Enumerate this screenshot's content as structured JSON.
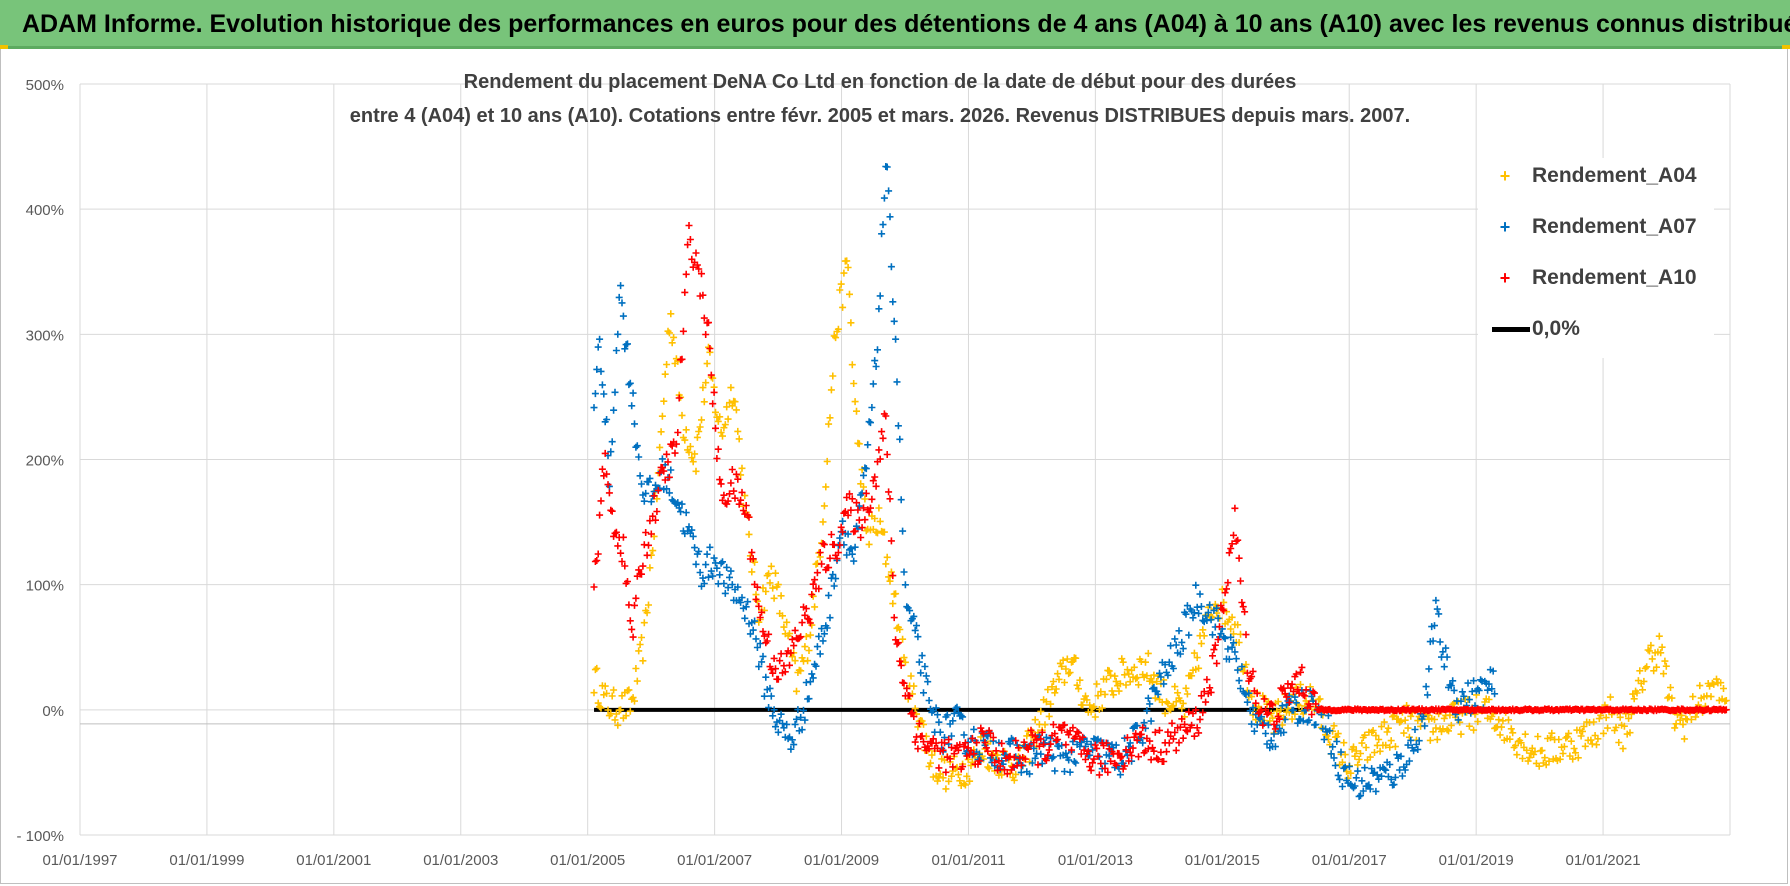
{
  "banner": {
    "title": "ADAM Informe. Evolution historique des performances en euros pour des détentions de 4 ans (A04) à 10 ans (A10) avec les revenus connus distribués"
  },
  "colors": {
    "banner": "#78c47a",
    "a04": "#ffc000",
    "a07": "#0070c0",
    "a10": "#ff0000",
    "zero": "#000000",
    "grid": "#d9d9d9",
    "text": "#404040"
  },
  "chart_data": {
    "type": "scatter",
    "title_line1": "Rendement du placement DeNA Co Ltd en fonction de la date de début pour des durées",
    "title_line2": "entre 4 (A04) et 10 ans (A10). Cotations entre févr. 2005 et mars. 2026. Revenus DISTRIBUES depuis mars. 2007.",
    "x_axis": {
      "type": "date",
      "min_year": 1997.0,
      "max_year": 2023.0,
      "tick_labels": [
        "01/01/1997",
        "01/01/1999",
        "01/01/2001",
        "01/01/2003",
        "01/01/2005",
        "01/01/2007",
        "01/01/2009",
        "01/01/2011",
        "01/01/2013",
        "01/01/2015",
        "01/01/2017",
        "01/01/2019",
        "01/01/2021"
      ]
    },
    "y_axis": {
      "min": -100,
      "max": 500,
      "tick_values": [
        500,
        400,
        300,
        200,
        100,
        0,
        -100
      ],
      "tick_labels": [
        "500%",
        "400%",
        "300%",
        "200%",
        "100%",
        "0%",
        "- 100%"
      ],
      "grid": true
    },
    "legend": [
      "Rendement_A04",
      "Rendement_A07",
      "Rendement_A10",
      "0,0%"
    ],
    "legend_position": "right",
    "series": [
      {
        "name": "Rendement_A04",
        "color": "#ffc000",
        "x_years": [
          2005.1,
          2005.3,
          2005.5,
          2005.7,
          2005.9,
          2006.1,
          2006.3,
          2006.5,
          2006.7,
          2006.9,
          2007.1,
          2007.3,
          2007.5,
          2007.7,
          2007.9,
          2008.1,
          2008.3,
          2008.5,
          2008.7,
          2008.9,
          2009.1,
          2009.2,
          2009.4,
          2009.6,
          2009.8,
          2010.0,
          2010.2,
          2010.4,
          2010.6,
          2010.8,
          2011.0,
          2011.2,
          2011.5,
          2011.8,
          2012.0,
          2012.3,
          2012.6,
          2012.9,
          2013.2,
          2013.5,
          2013.8,
          2014.1,
          2014.4,
          2014.7,
          2014.9,
          2015.2,
          2015.5,
          2015.8,
          2016.1,
          2016.4,
          2016.7,
          2017.0,
          2017.3,
          2017.6,
          2017.9,
          2018.2,
          2018.5,
          2018.8,
          2019.1,
          2019.4,
          2019.7,
          2020.0,
          2020.3,
          2020.6,
          2020.9,
          2021.1,
          2021.3,
          2021.5,
          2021.7,
          2021.9,
          2022.1,
          2022.3,
          2022.5,
          2022.7,
          2022.95
        ],
        "y_pct": [
          25,
          5,
          0,
          5,
          60,
          180,
          320,
          230,
          200,
          280,
          220,
          260,
          150,
          80,
          110,
          70,
          20,
          60,
          150,
          300,
          360,
          250,
          140,
          150,
          100,
          30,
          0,
          -40,
          -50,
          -50,
          -45,
          -30,
          -40,
          -45,
          -25,
          10,
          40,
          0,
          20,
          30,
          35,
          10,
          0,
          60,
          90,
          70,
          5,
          -10,
          5,
          10,
          -20,
          -45,
          -30,
          -20,
          -10,
          -15,
          -10,
          -5,
          0,
          -10,
          -25,
          -35,
          -30,
          -25,
          -15,
          0,
          -20,
          5,
          40,
          50,
          -5,
          -10,
          5,
          15,
          10
        ]
      },
      {
        "name": "Rendement_A07",
        "color": "#0070c0",
        "x_years": [
          2005.1,
          2005.2,
          2005.35,
          2005.5,
          2005.7,
          2005.85,
          2006.0,
          2006.2,
          2006.4,
          2006.6,
          2006.8,
          2007.0,
          2007.2,
          2007.4,
          2007.6,
          2007.8,
          2008.0,
          2008.2,
          2008.4,
          2008.6,
          2008.8,
          2009.0,
          2009.2,
          2009.4,
          2009.55,
          2009.7,
          2009.85,
          2010.0,
          2010.2,
          2010.4,
          2010.6,
          2010.8,
          2011.0,
          2011.3,
          2011.6,
          2011.9,
          2012.2,
          2012.5,
          2012.8,
          2013.1,
          2013.4,
          2013.7,
          2014.0,
          2014.3,
          2014.6,
          2014.9,
          2015.2,
          2015.5,
          2015.8,
          2016.1,
          2016.4,
          2016.7,
          2016.9,
          2017.1,
          2017.4,
          2017.7,
          2018.0,
          2018.2,
          2018.35,
          2018.5,
          2018.7,
          2018.9,
          2019.1,
          2019.3
        ],
        "y_pct": [
          250,
          290,
          180,
          340,
          250,
          180,
          170,
          190,
          170,
          140,
          110,
          120,
          100,
          90,
          70,
          20,
          -10,
          -25,
          0,
          40,
          80,
          150,
          120,
          200,
          280,
          440,
          300,
          90,
          50,
          0,
          -20,
          -10,
          -25,
          -30,
          -35,
          -40,
          -30,
          -40,
          -30,
          -35,
          -40,
          -20,
          20,
          50,
          90,
          70,
          40,
          -10,
          -20,
          0,
          5,
          -20,
          -50,
          -60,
          -55,
          -50,
          -30,
          0,
          80,
          40,
          5,
          10,
          15,
          20
        ]
      },
      {
        "name": "Rendement_A10",
        "color": "#ff0000",
        "x_years": [
          2005.1,
          2005.25,
          2005.4,
          2005.55,
          2005.7,
          2005.85,
          2006.0,
          2006.2,
          2006.4,
          2006.5,
          2006.6,
          2006.75,
          2006.9,
          2007.1,
          2007.3,
          2007.5,
          2007.7,
          2007.9,
          2008.1,
          2008.3,
          2008.5,
          2008.7,
          2008.9,
          2009.1,
          2009.3,
          2009.5,
          2009.7,
          2009.85,
          2010.0,
          2010.2,
          2010.4,
          2010.6,
          2010.8,
          2011.0,
          2011.3,
          2011.6,
          2011.9,
          2012.2,
          2012.5,
          2012.8,
          2013.1,
          2013.4,
          2013.7,
          2014.0,
          2014.3,
          2014.6,
          2014.9,
          2015.05,
          2015.2,
          2015.4,
          2015.6,
          2015.8,
          2016.0,
          2016.2,
          2016.5,
          2017.0,
          2017.5,
          2018.0,
          2018.5,
          2019.0,
          2019.5,
          2020.0,
          2020.5,
          2021.0,
          2021.5,
          2022.0,
          2022.5,
          2022.95
        ],
        "y_pct": [
          90,
          200,
          150,
          130,
          60,
          120,
          150,
          190,
          210,
          300,
          380,
          350,
          300,
          170,
          180,
          160,
          80,
          40,
          30,
          60,
          80,
          120,
          130,
          160,
          150,
          180,
          230,
          60,
          20,
          -20,
          -30,
          -35,
          -40,
          -35,
          -25,
          -45,
          -30,
          -30,
          -20,
          -35,
          -40,
          -35,
          -25,
          -30,
          -20,
          -10,
          40,
          100,
          150,
          40,
          0,
          -5,
          10,
          25,
          0,
          0,
          0,
          0,
          0,
          0,
          0,
          0,
          0,
          0,
          0,
          0,
          0,
          0
        ]
      },
      {
        "name": "0,0%",
        "color": "#000000",
        "x_years": [
          2005.1,
          2016.3
        ],
        "y_pct": [
          0,
          0
        ]
      }
    ]
  }
}
